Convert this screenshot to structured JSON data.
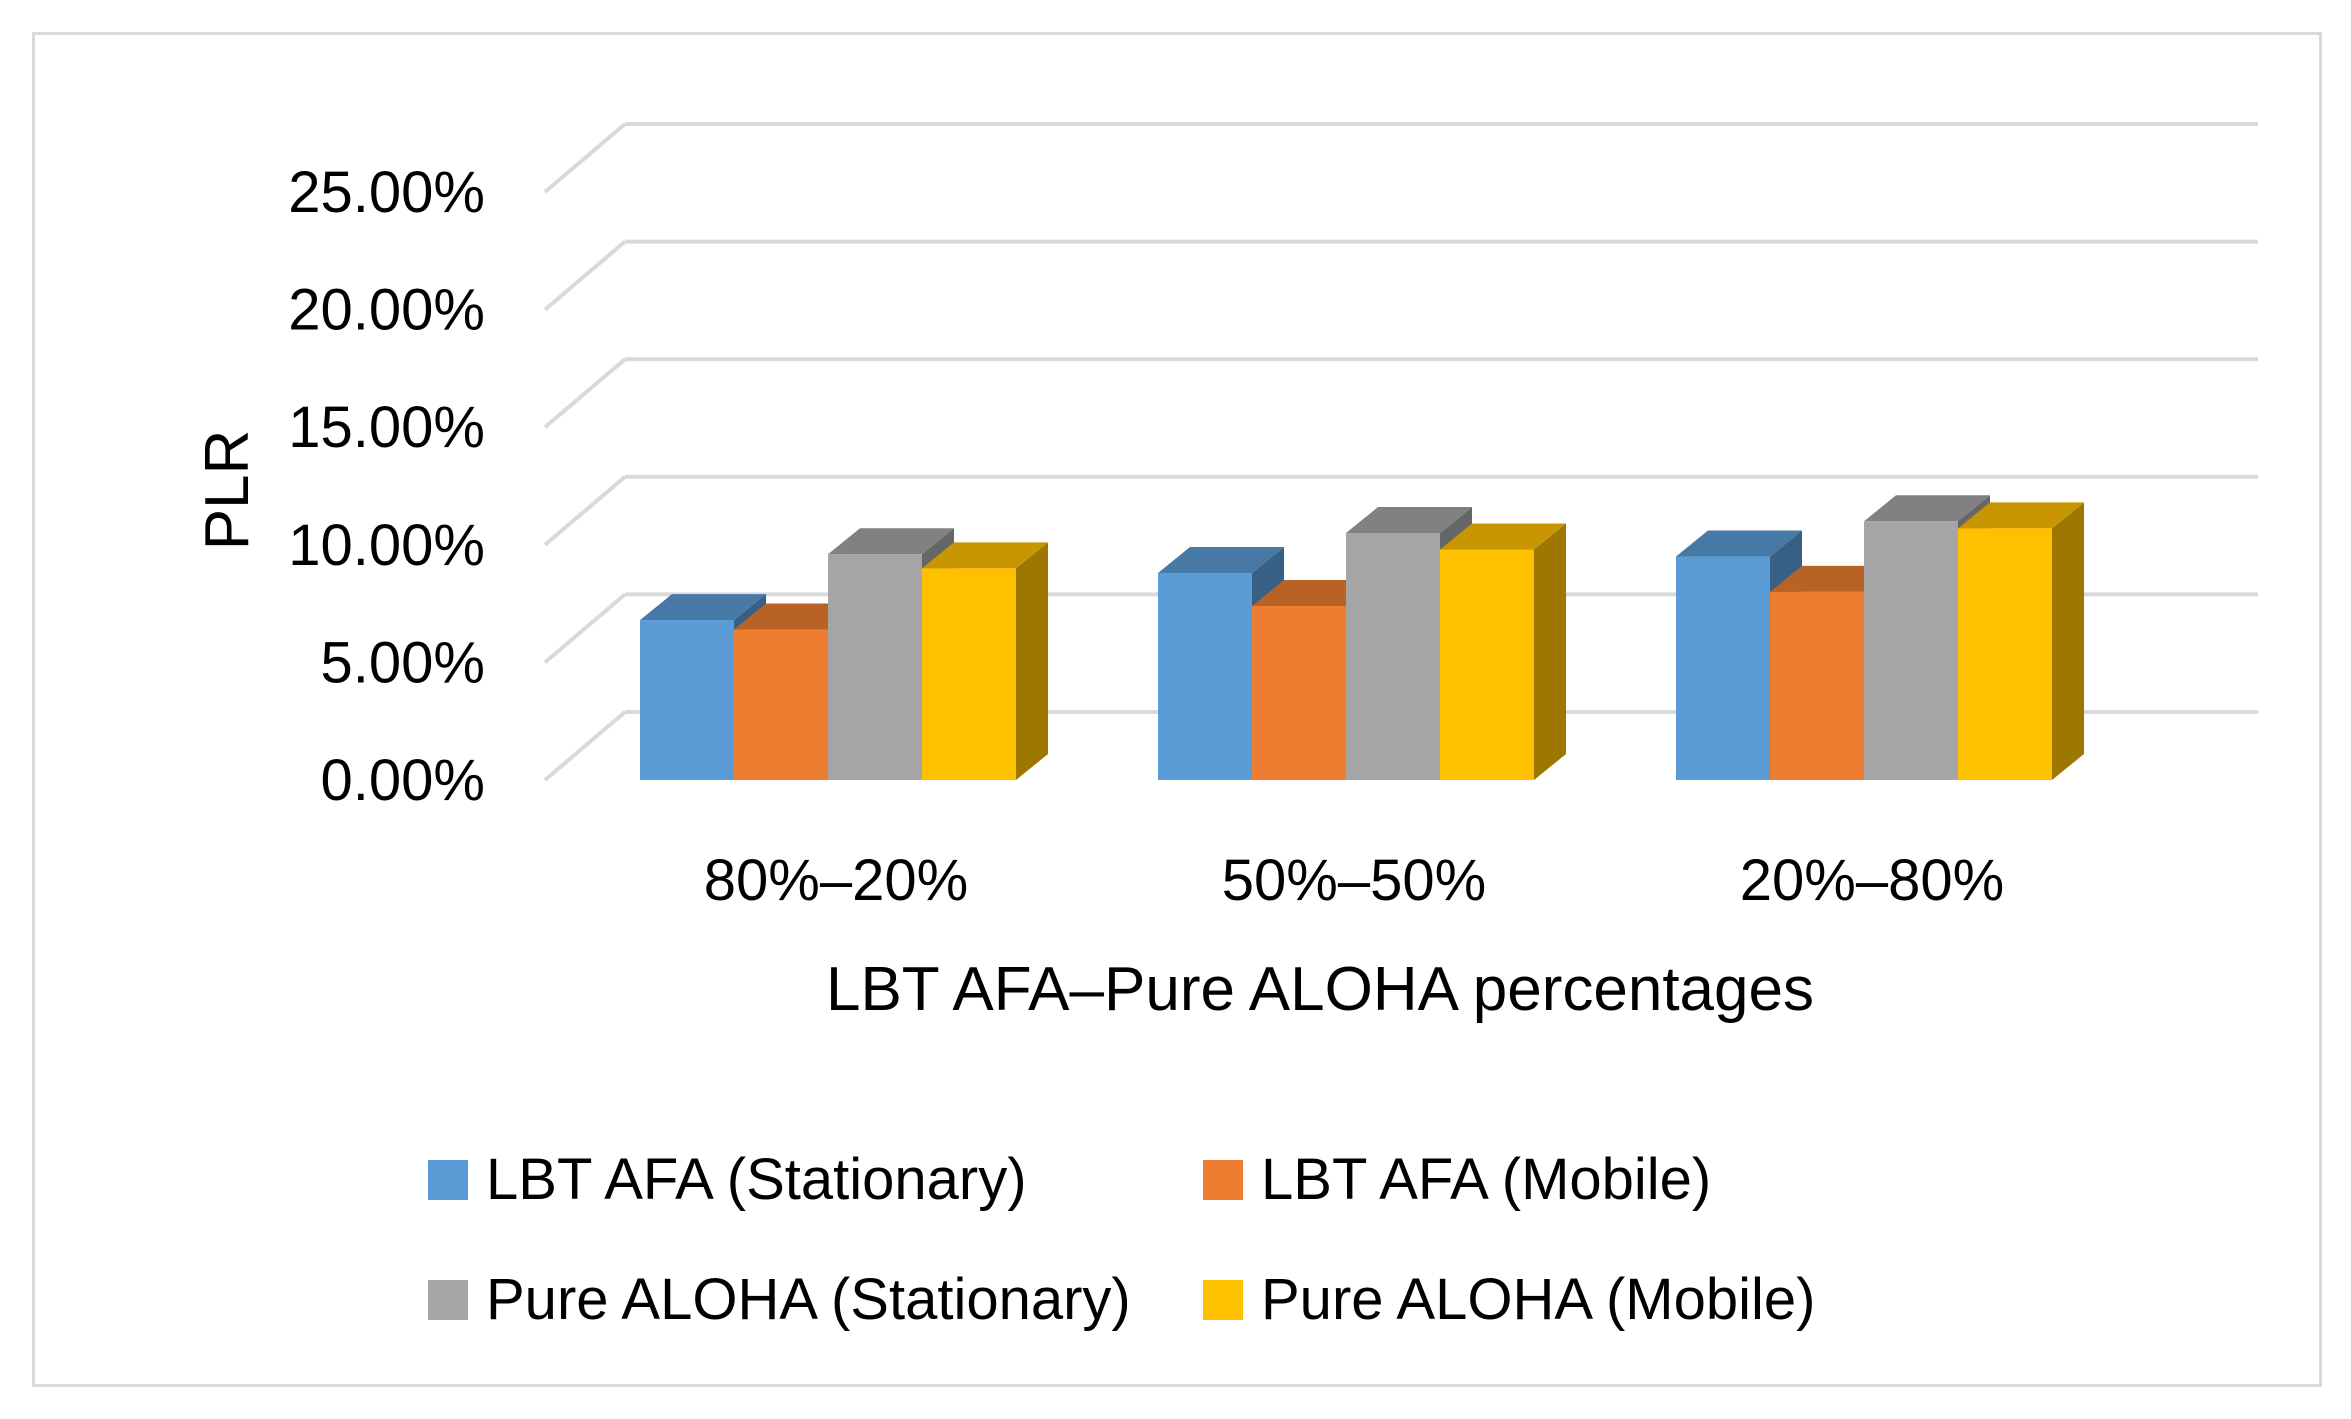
{
  "chart_data": {
    "type": "bar",
    "style": "3d-clustered-column",
    "title": "",
    "xlabel": "LBT AFA–Pure ALOHA percentages",
    "ylabel": "PLR",
    "ylim": [
      0,
      25
    ],
    "ytick_labels": [
      "0.00%",
      "5.00%",
      "10.00%",
      "15.00%",
      "20.00%",
      "25.00%"
    ],
    "categories": [
      "80%–20%",
      "50%–50%",
      "20%–80%"
    ],
    "series": [
      {
        "name": "LBT AFA (Stationary)",
        "color": "#5b9bd5",
        "values": [
          6.8,
          8.8,
          9.5
        ]
      },
      {
        "name": "LBT AFA (Mobile)",
        "color": "#ed7d31",
        "values": [
          6.4,
          7.4,
          8.0
        ]
      },
      {
        "name": "Pure ALOHA (Stationary)",
        "color": "#a5a5a5",
        "values": [
          9.6,
          10.5,
          11.0
        ]
      },
      {
        "name": "Pure ALOHA (Mobile)",
        "color": "#ffc000",
        "values": [
          9.0,
          9.8,
          10.7
        ]
      }
    ],
    "legend_position": "bottom",
    "grid": true
  }
}
